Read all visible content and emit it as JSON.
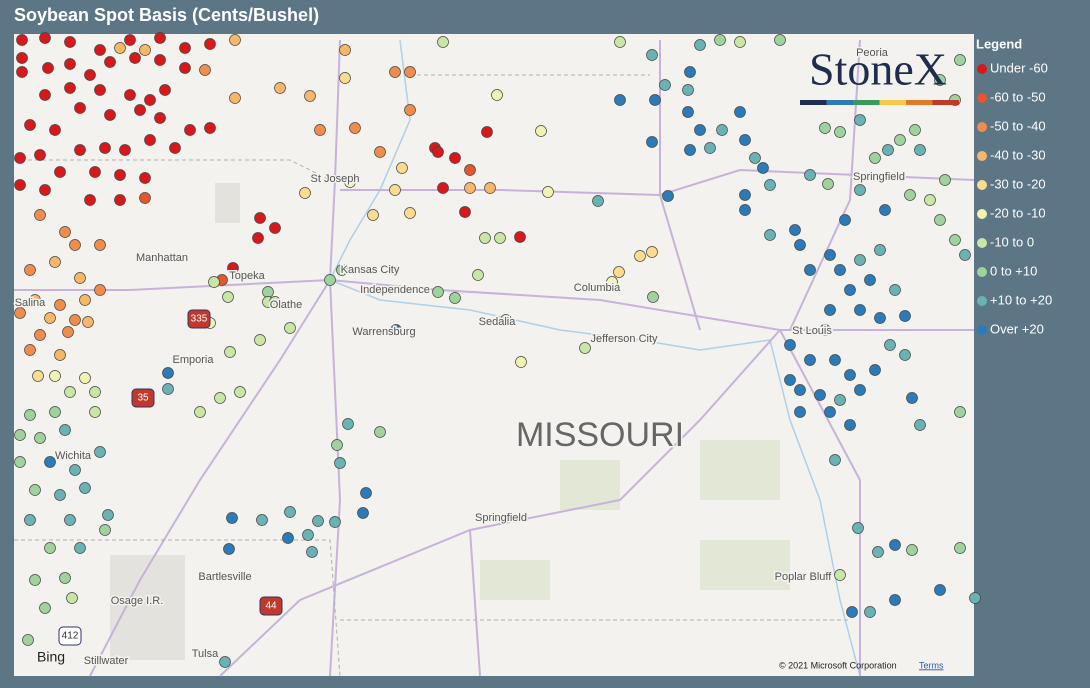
{
  "header": {
    "title": "Soybean Spot Basis (Cents/Bushel)"
  },
  "legend": {
    "title": "Legend",
    "items": [
      {
        "label": "Under -60",
        "color": "#d7191c"
      },
      {
        "label": "-60 to -50",
        "color": "#e4572e"
      },
      {
        "label": "-50 to -40",
        "color": "#f08d4c"
      },
      {
        "label": "-40 to -30",
        "color": "#f7b767"
      },
      {
        "label": "-30 to -20",
        "color": "#fbdc8e"
      },
      {
        "label": "-20 to -10",
        "color": "#f1f3b4"
      },
      {
        "label": "-10 to 0",
        "color": "#c8e6a4"
      },
      {
        "label": "0 to +10",
        "color": "#9fd39d"
      },
      {
        "label": "+10 to +20",
        "color": "#69b3b4"
      },
      {
        "label": "Over +20",
        "color": "#2c7bb8"
      }
    ]
  },
  "map": {
    "labels": [
      "St Joseph",
      "Manhattan",
      "Topeka",
      "Kansas City",
      "Independence",
      "Olathe",
      "Salina",
      "Emporia",
      "Warrensburg",
      "Sedalia",
      "Columbia",
      "Jefferson City",
      "St Louis",
      "Springfield",
      "Peoria",
      "MISSOURI",
      "Springfield",
      "Wichita",
      "Bartlesville",
      "Osage I.R.",
      "Poplar Bluff",
      "Tulsa",
      "Stillwater"
    ],
    "shields": [
      "335",
      "35",
      "44",
      "412"
    ],
    "logo": "StoneX",
    "provider": "Bing",
    "copyright": "© 2021 Microsoft Corporation",
    "terms": "Terms"
  }
}
